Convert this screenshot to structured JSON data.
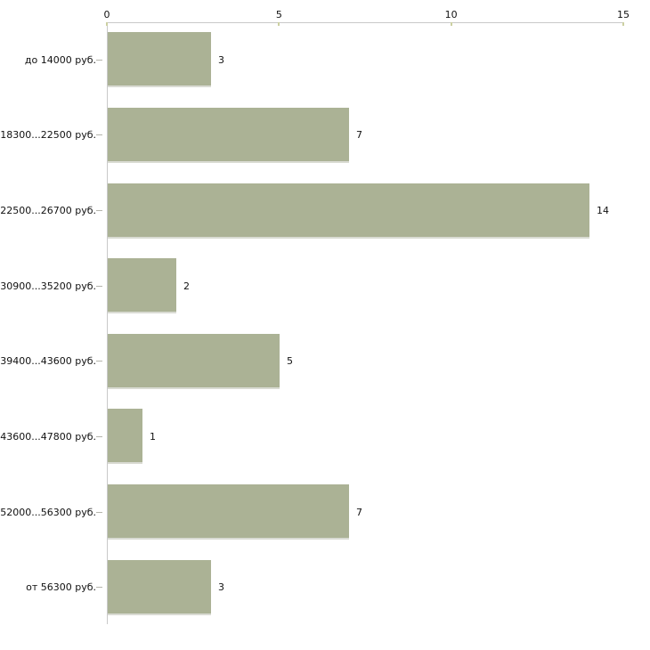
{
  "chart_data": {
    "type": "bar",
    "orientation": "horizontal",
    "title": "",
    "xlabel": "",
    "ylabel": "",
    "categories": [
      "до 14000 руб.",
      "18300...22500 руб.",
      "22500...26700 руб.",
      "30900...35200 руб.",
      "39400...43600 руб.",
      "43600...47800 руб.",
      "52000...56300 руб.",
      "от 56300 руб."
    ],
    "values": [
      3,
      7,
      14,
      2,
      5,
      1,
      7,
      3
    ],
    "value_labels": [
      "3",
      "7",
      "14",
      "2",
      "5",
      "1",
      "7",
      "3"
    ],
    "xlim": [
      0,
      15
    ],
    "x_ticks": [
      0,
      5,
      10,
      15
    ],
    "x_tick_labels": [
      "0",
      "5",
      "10",
      "15"
    ],
    "axis_position": "top",
    "grid": false,
    "legend": false,
    "colors": {
      "bar_fill": "#abb295",
      "bar_bottom_edge": "#d9dbd3",
      "axis_line": "#c9c9c9",
      "axis_tick": "#ccd0a2",
      "category_tick": "#b5b5ad",
      "text": "#111111",
      "background": "#ffffff"
    }
  }
}
